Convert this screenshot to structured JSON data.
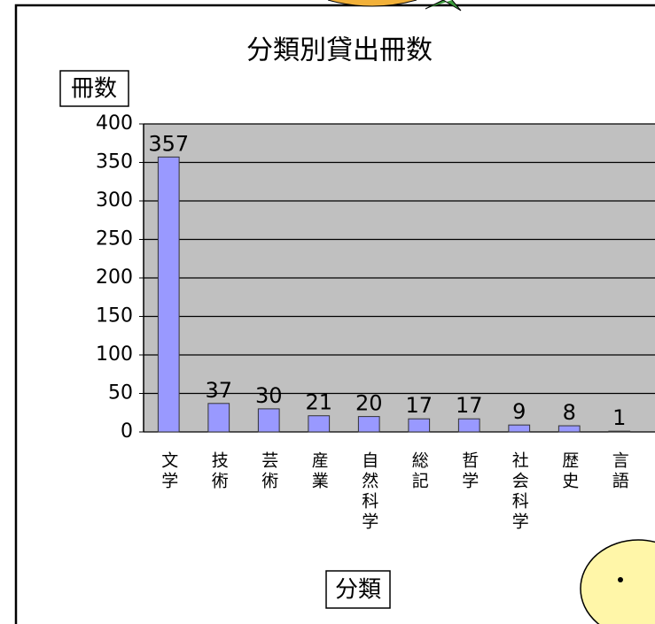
{
  "chart_data": {
    "type": "bar",
    "title": "分類別貸出冊数",
    "y_label": "冊数",
    "x_label": "分類",
    "categories": [
      "文学",
      "技術",
      "芸術",
      "産業",
      "自然科学",
      "総記",
      "哲学",
      "社会科学",
      "歴史",
      "言語"
    ],
    "values": [
      357,
      37,
      30,
      21,
      20,
      17,
      17,
      9,
      8,
      1
    ],
    "color": "#9999ff",
    "ylim": [
      0,
      400
    ],
    "yticks": [
      0,
      50,
      100,
      150,
      200,
      250,
      300,
      350,
      400
    ],
    "grid": true
  }
}
